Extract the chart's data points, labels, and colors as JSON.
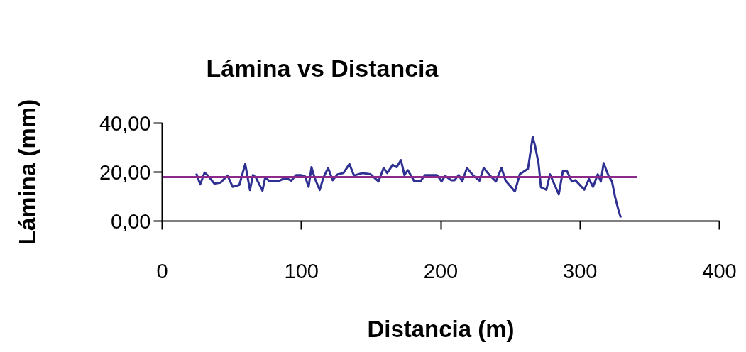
{
  "chart_data": {
    "type": "line",
    "title": "Lámina vs Distancia",
    "xlabel": "Distancia (m)",
    "ylabel": "Lámina (mm)",
    "xlim": [
      0,
      400
    ],
    "xticks": [
      0,
      100,
      200,
      300,
      400
    ],
    "ylim": [
      0,
      40
    ],
    "yticks": [
      {
        "value": 0,
        "label": "0,00"
      },
      {
        "value": 20,
        "label": "20,00"
      },
      {
        "value": 40,
        "label": "40,00"
      }
    ],
    "grid": false,
    "marker": "none",
    "line_style": "solid",
    "series": [
      {
        "color": "#2e3192",
        "x": [
          24.5,
          27.3,
          30.4,
          32.4,
          37.5,
          41.8,
          46.9,
          50.6,
          55.4,
          59.6,
          63,
          65.2,
          67.3,
          72,
          74,
          76.6,
          84.2,
          88.5,
          92.7,
          96.1,
          99.5,
          102.6,
          105.1,
          107.2,
          109.4,
          113.1,
          115.7,
          119.1,
          122.4,
          125.9,
          130.1,
          134.4,
          137.7,
          143.7,
          149.6,
          155.3,
          159,
          161.5,
          165.5,
          168.3,
          171.4,
          173.9,
          176.3,
          181,
          185.3,
          188.7,
          192.1,
          197.2,
          200.6,
          203.1,
          207.4,
          209.9,
          212.9,
          215.4,
          218.8,
          223.5,
          227.8,
          230.8,
          235.4,
          239.6,
          243.6,
          246.5,
          253.2,
          256.7,
          262.6,
          266,
          267.7,
          270.2,
          271.9,
          275.8,
          278.4,
          284.7,
          287.7,
          290.6,
          294,
          296.6,
          303,
          306.4,
          309.3,
          312.7,
          314.9,
          316.9,
          320.4,
          322.9,
          325.1,
          327.5,
          329.2
        ],
        "values": [
          19.4,
          15,
          19.8,
          18.8,
          15.3,
          15.7,
          18.6,
          14,
          14.8,
          23.3,
          12.7,
          18.8,
          17.7,
          12.4,
          17.9,
          16.5,
          16.5,
          17.7,
          16.5,
          18.8,
          18.8,
          18.2,
          14,
          22,
          17.7,
          12.7,
          17.7,
          21.7,
          16.7,
          19.1,
          19.6,
          23.3,
          18.6,
          19.6,
          19.1,
          16.2,
          21.7,
          19.6,
          23,
          22,
          24.9,
          18.8,
          20.8,
          16.2,
          16.2,
          18.8,
          18.8,
          18.8,
          16.2,
          18.5,
          16.7,
          16.7,
          18.8,
          16.2,
          21.7,
          18.5,
          16.5,
          21.7,
          18.5,
          16.2,
          21.7,
          16.5,
          12.1,
          19.1,
          21.4,
          34.4,
          30.7,
          23.5,
          13.8,
          12.8,
          19.1,
          10.9,
          20.6,
          20.4,
          16.2,
          16.7,
          12.8,
          17.2,
          14,
          19.1,
          16.2,
          23.7,
          18.5,
          16.2,
          9.9,
          4.6,
          1.4
        ]
      },
      {
        "color": "#8b2a8b",
        "x": [
          0,
          341
        ],
        "values": [
          18,
          18
        ]
      }
    ]
  }
}
